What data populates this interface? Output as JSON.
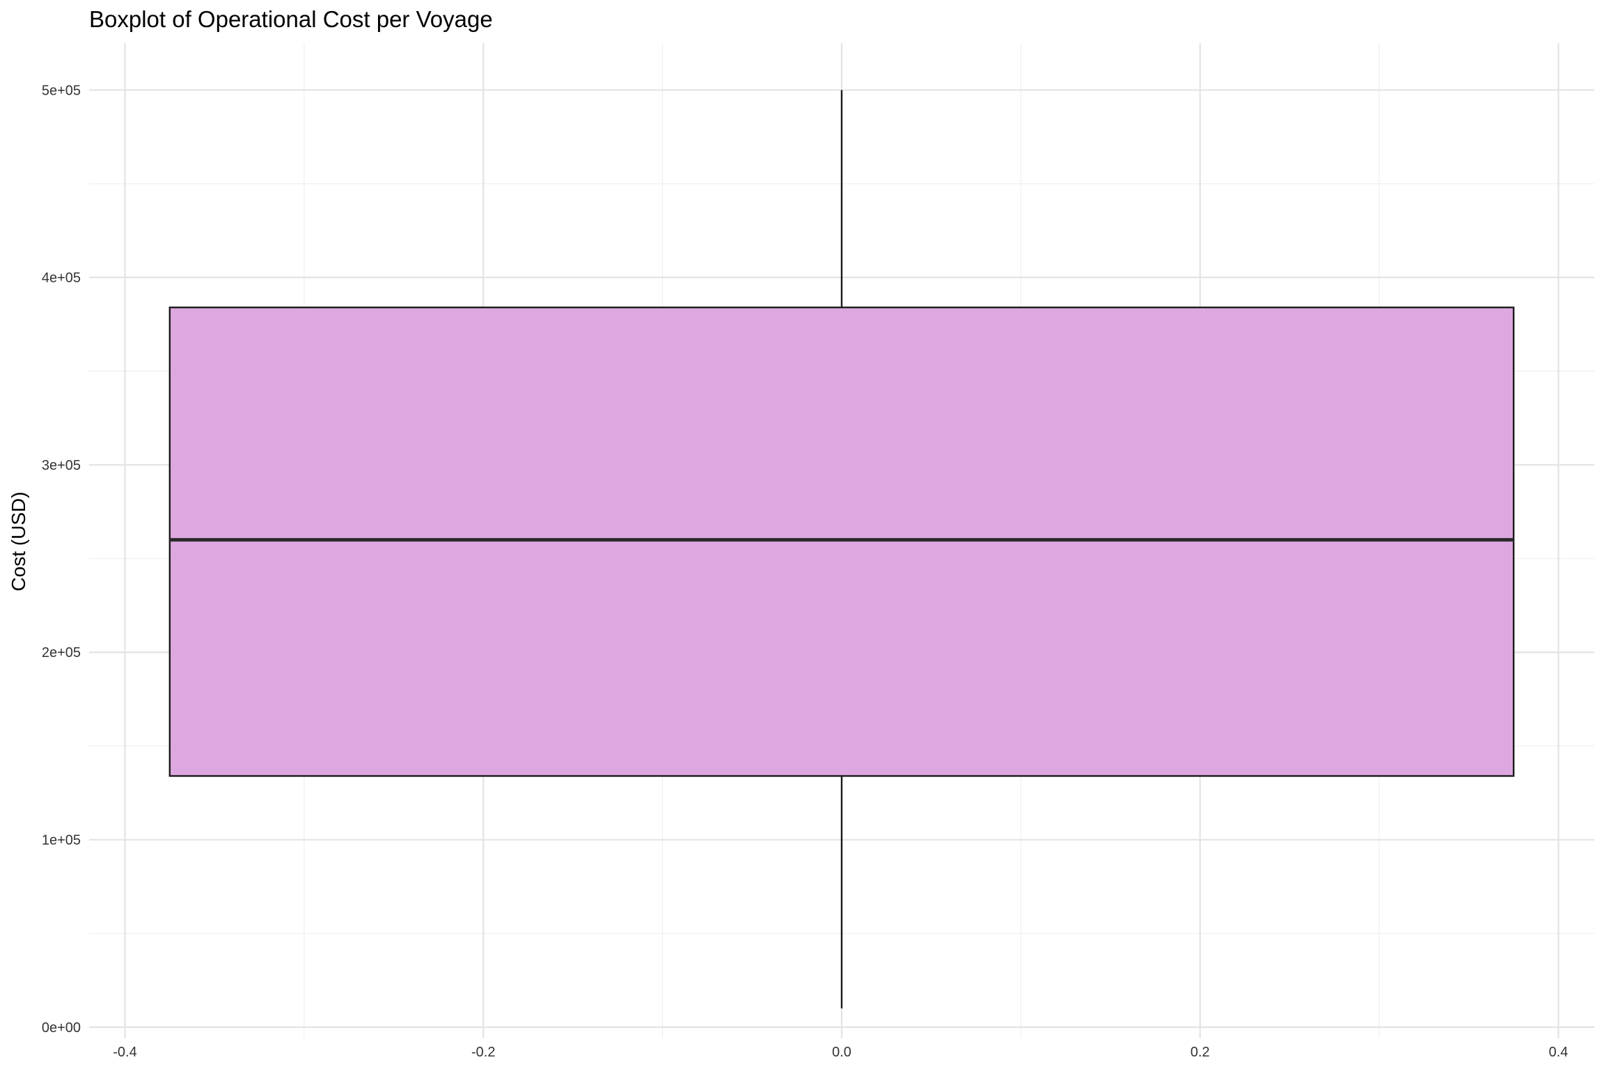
{
  "chart_data": {
    "type": "boxplot",
    "title": "Boxplot of Operational Cost per Voyage",
    "xlabel": "",
    "ylabel": "Cost (USD)",
    "xlim": [
      -0.42,
      0.42
    ],
    "ylim": [
      -6000,
      525000
    ],
    "x_ticks": [
      -0.4,
      -0.2,
      0.0,
      0.2,
      0.4
    ],
    "x_tick_labels": [
      "-0.4",
      "-0.2",
      "0.0",
      "0.2",
      "0.4"
    ],
    "y_ticks": [
      0,
      100000,
      200000,
      300000,
      400000,
      500000
    ],
    "y_tick_labels": [
      "0e+00",
      "1e+05",
      "2e+05",
      "3e+05",
      "4e+05",
      "5e+05"
    ],
    "grid": true,
    "legend": "none",
    "box": {
      "x_center": 0.0,
      "x_left": -0.375,
      "x_right": 0.375,
      "whisker_low": 10000,
      "q1": 134000,
      "median": 260000,
      "q3": 384000,
      "whisker_high": 500000
    },
    "colors": {
      "box_fill": "#dda8df",
      "box_stroke": "#1a1a1a",
      "grid": "#e3e3e3"
    }
  }
}
